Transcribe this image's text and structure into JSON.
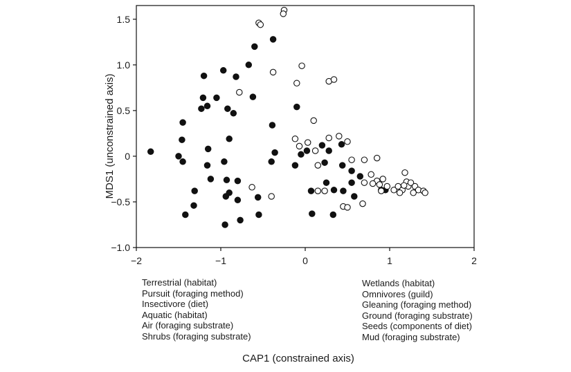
{
  "chart_data": {
    "type": "scatter",
    "xlabel": "CAP1 (constrained axis)",
    "ylabel": "MDS1 (unconstrained axis)",
    "xlim": [
      -2,
      2
    ],
    "ylim": [
      -1.0,
      1.65
    ],
    "xticks": [
      -2,
      -1,
      0,
      1,
      2
    ],
    "xtick_labels": [
      "−2",
      "−1",
      "0",
      "1",
      "2"
    ],
    "yticks": [
      -1.0,
      -0.5,
      0,
      0.5,
      1.0,
      1.5
    ],
    "ytick_labels": [
      "−1.0",
      "−0.5",
      "0",
      "0.5",
      "1.0",
      "1.5"
    ],
    "grid": false,
    "left_annotation": [
      "Terrestrial (habitat)",
      "Pursuit (foraging method)",
      "Insectivore (diet)",
      "Aquatic (habitat)",
      "Air (foraging substrate)",
      "Shrubs (foraging substrate)"
    ],
    "right_annotation": [
      "Wetlands (habitat)",
      "Omnivores (guild)",
      "Gleaning (foraging method)",
      "Ground (foraging substrate)",
      "Seeds (components of diet)",
      "Mud (foraging substrate)"
    ],
    "series": [
      {
        "marker": "filled",
        "color": "#111111",
        "points": [
          [
            -1.83,
            0.05
          ],
          [
            -1.45,
            0.37
          ],
          [
            -1.46,
            0.18
          ],
          [
            -1.5,
            0.0
          ],
          [
            -1.45,
            -0.06
          ],
          [
            -1.42,
            -0.64
          ],
          [
            -1.32,
            -0.54
          ],
          [
            -1.31,
            -0.38
          ],
          [
            -1.23,
            0.52
          ],
          [
            -1.21,
            0.64
          ],
          [
            -1.2,
            0.88
          ],
          [
            -1.16,
            0.55
          ],
          [
            -1.15,
            0.08
          ],
          [
            -1.16,
            -0.1
          ],
          [
            -1.12,
            -0.25
          ],
          [
            -1.05,
            0.64
          ],
          [
            -0.97,
            0.94
          ],
          [
            -0.96,
            -0.06
          ],
          [
            -0.93,
            -0.26
          ],
          [
            -0.94,
            -0.44
          ],
          [
            -0.95,
            -0.75
          ],
          [
            -0.92,
            0.52
          ],
          [
            -0.9,
            0.19
          ],
          [
            -0.9,
            -0.4
          ],
          [
            -0.85,
            0.47
          ],
          [
            -0.82,
            0.87
          ],
          [
            -0.8,
            -0.27
          ],
          [
            -0.8,
            -0.48
          ],
          [
            -0.77,
            -0.7
          ],
          [
            -0.67,
            1.0
          ],
          [
            -0.62,
            0.65
          ],
          [
            -0.6,
            1.2
          ],
          [
            -0.56,
            -0.45
          ],
          [
            -0.55,
            -0.64
          ],
          [
            -0.38,
            1.28
          ],
          [
            -0.39,
            0.34
          ],
          [
            -0.36,
            0.04
          ],
          [
            -0.4,
            -0.06
          ],
          [
            -0.1,
            0.54
          ],
          [
            -0.12,
            -0.1
          ],
          [
            -0.05,
            0.02
          ],
          [
            0.02,
            0.06
          ],
          [
            0.07,
            -0.38
          ],
          [
            0.08,
            -0.63
          ],
          [
            0.2,
            0.12
          ],
          [
            0.28,
            0.06
          ],
          [
            0.23,
            -0.07
          ],
          [
            0.25,
            -0.29
          ],
          [
            0.34,
            -0.37
          ],
          [
            0.33,
            -0.64
          ],
          [
            0.43,
            0.13
          ],
          [
            0.44,
            -0.1
          ],
          [
            0.45,
            -0.38
          ],
          [
            0.55,
            -0.16
          ],
          [
            0.55,
            -0.29
          ],
          [
            0.58,
            -0.44
          ],
          [
            0.65,
            -0.22
          ],
          [
            0.9,
            -0.37
          ],
          [
            0.95,
            -0.37
          ]
        ]
      },
      {
        "marker": "open",
        "color": "#111111",
        "points": [
          [
            -0.25,
            1.6
          ],
          [
            -0.26,
            1.56
          ],
          [
            -0.55,
            1.46
          ],
          [
            -0.53,
            1.44
          ],
          [
            -0.38,
            0.92
          ],
          [
            -0.78,
            0.7
          ],
          [
            -0.63,
            -0.34
          ],
          [
            -0.4,
            -0.44
          ],
          [
            -0.04,
            0.99
          ],
          [
            -0.1,
            0.8
          ],
          [
            0.28,
            0.82
          ],
          [
            0.34,
            0.84
          ],
          [
            0.1,
            0.39
          ],
          [
            -0.12,
            0.19
          ],
          [
            -0.07,
            0.11
          ],
          [
            0.03,
            0.15
          ],
          [
            0.12,
            0.06
          ],
          [
            0.28,
            0.2
          ],
          [
            0.4,
            0.22
          ],
          [
            0.15,
            -0.1
          ],
          [
            0.5,
            0.16
          ],
          [
            0.15,
            -0.38
          ],
          [
            0.23,
            -0.38
          ],
          [
            0.45,
            -0.55
          ],
          [
            0.5,
            -0.56
          ],
          [
            0.7,
            -0.04
          ],
          [
            0.85,
            -0.02
          ],
          [
            0.55,
            -0.04
          ],
          [
            0.7,
            -0.29
          ],
          [
            0.85,
            -0.27
          ],
          [
            0.78,
            -0.2
          ],
          [
            0.92,
            -0.25
          ],
          [
            0.88,
            -0.31
          ],
          [
            0.97,
            -0.33
          ],
          [
            0.9,
            -0.38
          ],
          [
            0.8,
            -0.3
          ],
          [
            0.68,
            -0.52
          ],
          [
            1.05,
            -0.37
          ],
          [
            1.1,
            -0.33
          ],
          [
            1.18,
            -0.18
          ],
          [
            1.2,
            -0.28
          ],
          [
            1.15,
            -0.37
          ],
          [
            1.22,
            -0.33
          ],
          [
            1.25,
            -0.29
          ],
          [
            1.3,
            -0.33
          ],
          [
            1.34,
            -0.37
          ],
          [
            1.28,
            -0.4
          ],
          [
            1.4,
            -0.38
          ],
          [
            1.42,
            -0.4
          ],
          [
            1.17,
            -0.32
          ],
          [
            1.12,
            -0.4
          ]
        ]
      }
    ]
  }
}
